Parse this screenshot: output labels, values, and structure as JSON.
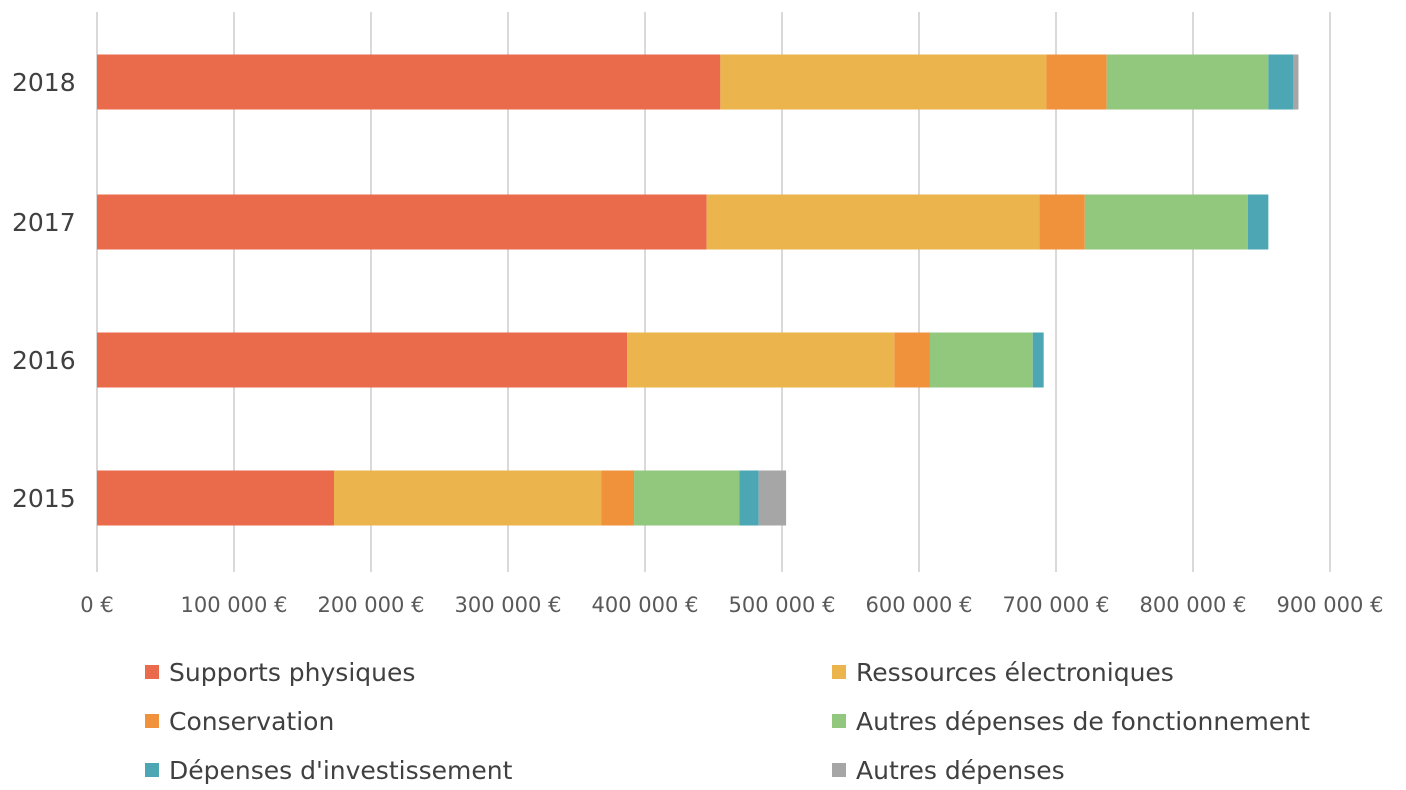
{
  "chart_data": {
    "type": "bar",
    "orientation": "horizontal",
    "stacked": true,
    "categories": [
      "2018",
      "2017",
      "2016",
      "2015"
    ],
    "series": [
      {
        "name": "Supports physiques",
        "color": "#EA6B4B",
        "values": [
          455000,
          445000,
          387000,
          173000
        ]
      },
      {
        "name": "Ressources électroniques",
        "color": "#ECB44C",
        "values": [
          238000,
          243000,
          195000,
          195000
        ]
      },
      {
        "name": "Conservation",
        "color": "#F0913C",
        "values": [
          44000,
          33000,
          26000,
          24000
        ]
      },
      {
        "name": "Autres dépenses de fonctionnement",
        "color": "#92C77E",
        "values": [
          118000,
          119000,
          75000,
          77000
        ]
      },
      {
        "name": "Dépenses d'investissement",
        "color": "#4DA6B4",
        "values": [
          18000,
          15000,
          8000,
          14000
        ]
      },
      {
        "name": "Autres dépenses",
        "color": "#A6A6A6",
        "values": [
          4000,
          0,
          0,
          20000
        ]
      }
    ],
    "xlim": [
      0,
      900000
    ],
    "xticks": [
      0,
      100000,
      200000,
      300000,
      400000,
      500000,
      600000,
      700000,
      800000,
      900000
    ],
    "xtick_labels": [
      "0 €",
      "100 000 €",
      "200 000 €",
      "300 000 €",
      "400 000 €",
      "500 000 €",
      "600 000 €",
      "700 000 €",
      "800 000 €",
      "900 000 €"
    ],
    "grid": true,
    "legend_position": "bottom",
    "title": "",
    "xlabel": "",
    "ylabel": ""
  }
}
